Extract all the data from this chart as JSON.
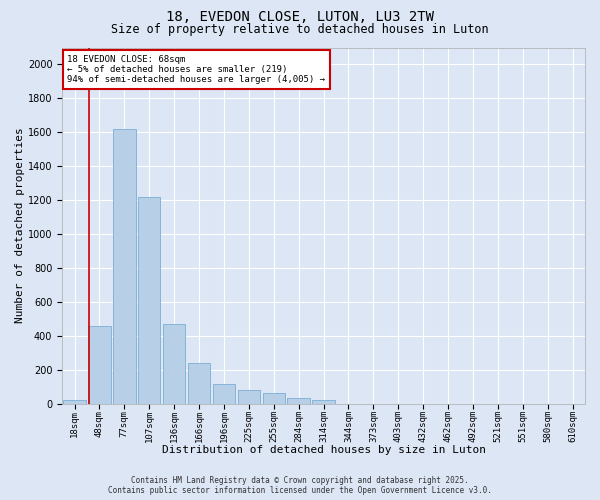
{
  "title1": "18, EVEDON CLOSE, LUTON, LU3 2TW",
  "title2": "Size of property relative to detached houses in Luton",
  "xlabel": "Distribution of detached houses by size in Luton",
  "ylabel": "Number of detached properties",
  "categories": [
    "18sqm",
    "48sqm",
    "77sqm",
    "107sqm",
    "136sqm",
    "166sqm",
    "196sqm",
    "225sqm",
    "255sqm",
    "284sqm",
    "314sqm",
    "344sqm",
    "373sqm",
    "403sqm",
    "432sqm",
    "462sqm",
    "492sqm",
    "521sqm",
    "551sqm",
    "580sqm",
    "610sqm"
  ],
  "values": [
    20,
    460,
    1620,
    1220,
    470,
    240,
    115,
    80,
    65,
    35,
    20,
    0,
    0,
    0,
    0,
    0,
    0,
    0,
    0,
    0,
    0
  ],
  "bar_color": "#b8cfe8",
  "bar_edgecolor": "#7aaed4",
  "vline_color": "#cc0000",
  "annotation_text": "18 EVEDON CLOSE: 68sqm\n← 5% of detached houses are smaller (219)\n94% of semi-detached houses are larger (4,005) →",
  "annotation_box_color": "#ffffff",
  "annotation_box_edgecolor": "#cc0000",
  "ylim": [
    0,
    2100
  ],
  "yticks": [
    0,
    200,
    400,
    600,
    800,
    1000,
    1200,
    1400,
    1600,
    1800,
    2000
  ],
  "background_color": "#dce6f5",
  "plot_bg_color": "#dce6f5",
  "grid_color": "#ffffff",
  "footer1": "Contains HM Land Registry data © Crown copyright and database right 2025.",
  "footer2": "Contains public sector information licensed under the Open Government Licence v3.0.",
  "title_fontsize": 10,
  "subtitle_fontsize": 8.5,
  "tick_fontsize": 6.5,
  "label_fontsize": 8,
  "footer_fontsize": 5.5
}
